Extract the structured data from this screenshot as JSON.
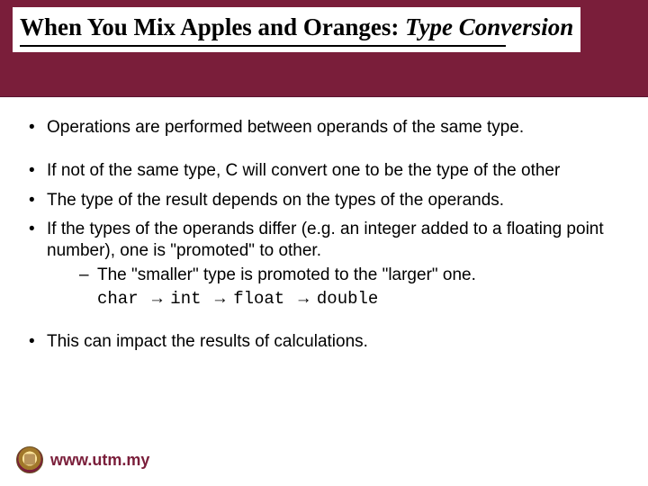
{
  "header": {
    "title_plain": "When You Mix Apples and Oranges: ",
    "title_italic": "Type Conversion",
    "bg_color": "#7a1e3a"
  },
  "bullets": {
    "b1": "Operations are performed between operands of the same type.",
    "b2": "If not of the same type, C will convert one to be the type of the other",
    "b3": "The type of the result depends on the types of the operands.",
    "b4": "If the types of the operands differ (e.g. an integer added to a floating point number), one is  \"promoted\" to other.",
    "sub1": "The \"smaller\" type is promoted to the \"larger\" one.",
    "chain_char": "char",
    "chain_int": "int",
    "chain_float": "float",
    "chain_double": "double",
    "b5": "This can impact the results of calculations."
  },
  "footer": {
    "url": "www.utm.my"
  }
}
